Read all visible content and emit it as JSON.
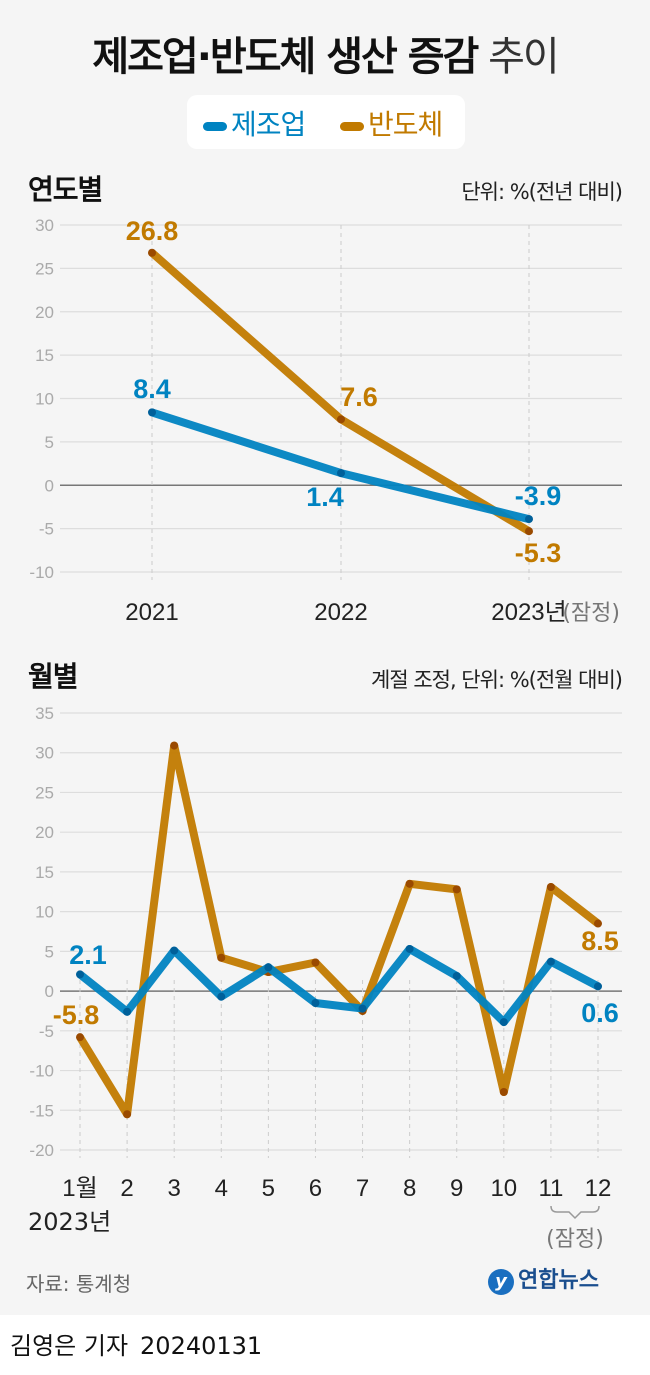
{
  "title": {
    "bold": "제조업·반도체 생산 증감",
    "light": "추이"
  },
  "legend": [
    {
      "name": "제조업",
      "color": "#0083c1"
    },
    {
      "name": "반도체",
      "color": "#c17a00"
    }
  ],
  "source": "자료: 통계청",
  "logo": "연합뉴스",
  "byline": {
    "author": "김영은 기자",
    "date": "20240131"
  },
  "chart_data": [
    {
      "type": "line",
      "title": "연도별",
      "unit": "단위: %(전년 대비)",
      "categories": [
        "2021",
        "2022",
        "2023년"
      ],
      "category_note": "(잠정)",
      "ylim": [
        -10,
        30
      ],
      "yticks": [
        30,
        25,
        20,
        15,
        10,
        5,
        0,
        -5,
        -10
      ],
      "grid": true,
      "series": [
        {
          "name": "제조업",
          "color": "#0083c1",
          "values": [
            8.4,
            1.4,
            -3.9
          ],
          "labels": [
            "8.4",
            "1.4",
            "-3.9"
          ]
        },
        {
          "name": "반도체",
          "color": "#c17a00",
          "values": [
            26.8,
            7.6,
            -5.3
          ],
          "labels": [
            "26.8",
            "7.6",
            "-5.3"
          ]
        }
      ]
    },
    {
      "type": "line",
      "title": "월별",
      "unit": "계절 조정, 단위: %(전월 대비)",
      "categories": [
        "1월",
        "2",
        "3",
        "4",
        "5",
        "6",
        "7",
        "8",
        "9",
        "10",
        "11",
        "12"
      ],
      "year_label": "2023년",
      "category_note": "(잠정)",
      "ylim": [
        -20,
        35
      ],
      "yticks": [
        35,
        30,
        25,
        20,
        15,
        10,
        5,
        0,
        -5,
        -10,
        -15,
        -20
      ],
      "grid": true,
      "series": [
        {
          "name": "제조업",
          "color": "#0083c1",
          "values": [
            2.1,
            -2.6,
            5.1,
            -0.7,
            3.0,
            -1.5,
            -2.2,
            5.3,
            1.9,
            -3.9,
            3.7,
            0.6
          ],
          "first_label": "2.1",
          "last_label": "0.6"
        },
        {
          "name": "반도체",
          "color": "#c17a00",
          "values": [
            -5.8,
            -15.5,
            30.9,
            4.2,
            2.4,
            3.6,
            -2.5,
            13.5,
            12.8,
            -12.7,
            13.1,
            8.5
          ],
          "first_label": "-5.8",
          "last_label": "8.5"
        }
      ]
    }
  ]
}
